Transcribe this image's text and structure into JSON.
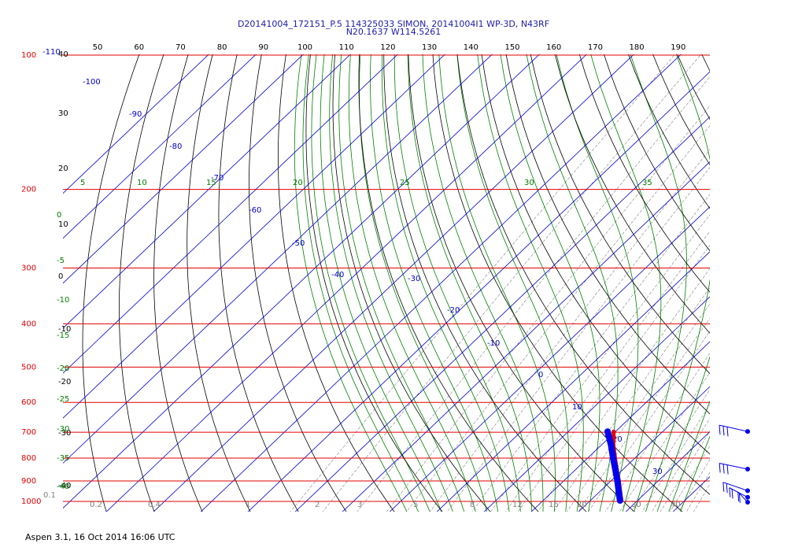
{
  "header": {
    "line1": "D20141004_172151_P.5 114325033 SIMON, 20141004I1 WP-3D, N43RF",
    "line2": "N20.1637 W114.5261"
  },
  "footer": {
    "text": "Aspen 3.1, 16 Oct 2014  16:06 UTC"
  },
  "colors": {
    "isobar": "#e00000",
    "isotherm": "#0000cc",
    "dry_adiabat": "#000000",
    "moist_adiabat": "#008000",
    "mixing_ratio": "#808080",
    "temperature": "#e00000",
    "dewpoint": "#0000ee",
    "wind_barb": "#0000ee"
  },
  "chart_data": {
    "type": "line",
    "title": "D20141004_172151_P.5 114325033 SIMON, 20141004I1 WP-3D, N43RF",
    "subtitle": "N20.1637 W114.5261",
    "xlabel": "",
    "ylabel": "",
    "pressure_levels": [
      100,
      200,
      300,
      400,
      500,
      600,
      700,
      800,
      900,
      1000
    ],
    "pressure_labels": [
      "100",
      "200",
      "300",
      "400",
      "500",
      "600",
      "700",
      "800",
      "900",
      "1000"
    ],
    "theta_top_labels": [
      "50",
      "60",
      "70",
      "80",
      "90",
      "100",
      "110",
      "120",
      "130",
      "140",
      "150",
      "160",
      "170",
      "180",
      "190"
    ],
    "isotherm_labels": [
      "-110",
      "-100",
      "-90",
      "-80",
      "-70",
      "-60",
      "-50",
      "-40",
      "-30",
      "-20",
      "-10",
      "0",
      "10",
      "20",
      "30",
      "40"
    ],
    "left_dry_labels": [
      "40",
      "30",
      "20",
      "10",
      "0",
      "-10",
      "-20",
      "-30",
      "-40"
    ],
    "theta_e_labels": [
      "5",
      "10",
      "15",
      "20",
      "25",
      "30",
      "35"
    ],
    "left_green_labels": [
      "0",
      "-5",
      "-10",
      "-15",
      "-20",
      "-25",
      "-30",
      "-35",
      "-40"
    ],
    "mixing_ratio_labels": [
      "0.1",
      "0.2",
      "0.4",
      "1",
      "2",
      "3",
      "5",
      "8",
      "12",
      "16",
      "20",
      "30",
      "40"
    ],
    "series": [
      {
        "name": "",
        "values": [
          {
            "p": 700,
            "t": 9.6
          },
          {
            "p": 750,
            "t": 12.5
          },
          {
            "p": 800,
            "t": 15.6
          },
          {
            "p": 850,
            "t": 18.6
          },
          {
            "p": 900,
            "t": 21.5
          },
          {
            "p": 950,
            "t": 24.1
          },
          {
            "p": 1000,
            "t": 26.6
          }
        ]
      },
      {
        "name": "",
        "values": [
          {
            "p": 700,
            "t": 8.3
          },
          {
            "p": 750,
            "t": 12.0
          },
          {
            "p": 800,
            "t": 15.2
          },
          {
            "p": 850,
            "t": 18.3
          },
          {
            "p": 900,
            "t": 21.2
          },
          {
            "p": 950,
            "t": 23.8
          },
          {
            "p": 1000,
            "t": 26.3
          }
        ]
      }
    ],
    "wind_barbs": [
      {
        "p": 700,
        "speed_kt": 25,
        "direction_deg": 90
      },
      {
        "p": 850,
        "speed_kt": 30,
        "direction_deg": 85
      },
      {
        "p": 950,
        "speed_kt": 20,
        "direction_deg": 120
      },
      {
        "p": 975,
        "speed_kt": 20,
        "direction_deg": 140
      },
      {
        "p": 1000,
        "speed_kt": 15,
        "direction_deg": 160
      }
    ]
  }
}
